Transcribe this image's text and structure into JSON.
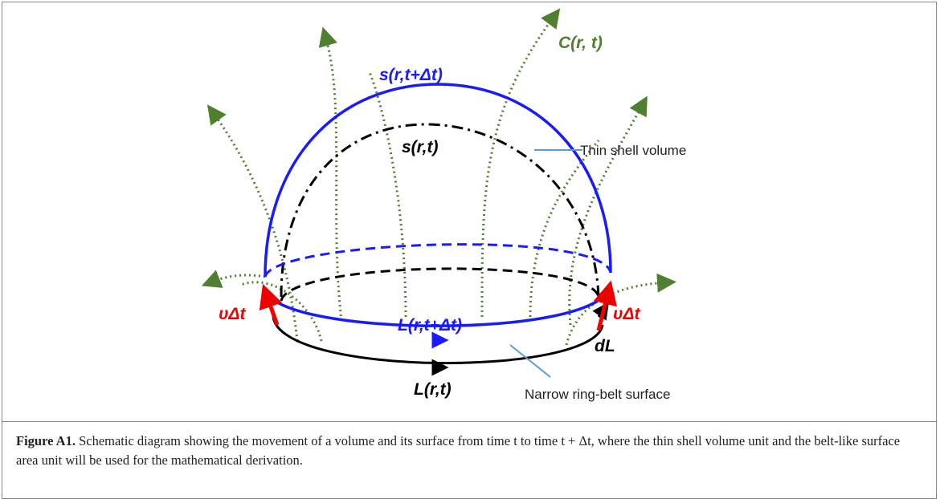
{
  "figure": {
    "labels": {
      "c": "C(r, t)",
      "s_next": "s(r,t+Δt)",
      "s_now": "s(r,t)",
      "thin_shell": "Thin shell volume",
      "v_left": "υΔt",
      "v_right": "υΔt",
      "l_next": "L(r,t+Δt)",
      "dl": "dL",
      "l_now": "L(r,t)",
      "ring_belt": "Narrow ring-belt surface"
    },
    "caption": {
      "label": "Figure A1.",
      "text": "Schematic diagram showing the movement of a volume and its surface from time t to time t + Δt, where the thin shell volume unit and the belt-like surface area unit will be used for the mathematical derivation."
    }
  }
}
